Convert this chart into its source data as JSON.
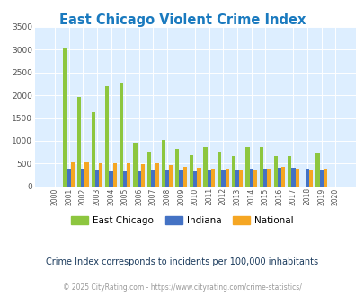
{
  "title": "East Chicago Violent Crime Index",
  "years": [
    2000,
    2001,
    2002,
    2003,
    2004,
    2005,
    2006,
    2007,
    2008,
    2009,
    2010,
    2011,
    2012,
    2013,
    2014,
    2015,
    2016,
    2017,
    2018,
    2019,
    2020
  ],
  "east_chicago": [
    0,
    3040,
    1970,
    1630,
    2200,
    2280,
    970,
    740,
    1020,
    830,
    680,
    860,
    750,
    660,
    860,
    860,
    660,
    660,
    0,
    720,
    0
  ],
  "indiana": [
    0,
    390,
    400,
    380,
    330,
    330,
    330,
    360,
    370,
    360,
    330,
    360,
    370,
    360,
    390,
    400,
    410,
    420,
    400,
    375,
    0
  ],
  "national": [
    0,
    520,
    520,
    500,
    500,
    500,
    480,
    500,
    470,
    430,
    410,
    390,
    390,
    370,
    380,
    390,
    430,
    400,
    380,
    390,
    0
  ],
  "ec_color": "#8dc63f",
  "in_color": "#4472c4",
  "nat_color": "#f5a623",
  "bg_color": "#ddeeff",
  "ylim": [
    0,
    3500
  ],
  "yticks": [
    0,
    500,
    1000,
    1500,
    2000,
    2500,
    3000,
    3500
  ],
  "subtitle": "Crime Index corresponds to incidents per 100,000 inhabitants",
  "footer": "© 2025 CityRating.com - https://www.cityrating.com/crime-statistics/",
  "legend_labels": [
    "East Chicago",
    "Indiana",
    "National"
  ],
  "title_color": "#1a7abf",
  "subtitle_color": "#1a3a5c",
  "footer_color": "#999999"
}
